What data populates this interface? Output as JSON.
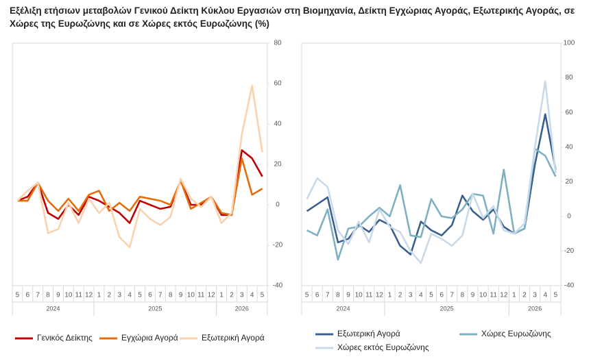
{
  "title": "Εξέλιξη ετήσιων μεταβολών Γενικού Δείκτη Κύκλου Εργασιών στη Βιομηχανία, Δείκτη Εγχώριας Αγοράς, Εξωτερικής Αγοράς,  σε Χώρες της Ευρωζώνης και σε Χώρες εκτός Ευρωζώνης (%)",
  "chart_data": [
    {
      "type": "line",
      "categories": [
        "5",
        "6",
        "7",
        "8",
        "9",
        "10",
        "11",
        "12",
        "1",
        "2",
        "3",
        "4",
        "5",
        "6",
        "7",
        "8",
        "9",
        "10",
        "11",
        "12",
        "1",
        "2",
        "3",
        "4",
        "5"
      ],
      "groups": [
        {
          "label": "2024",
          "count": 8
        },
        {
          "label": "2025",
          "count": 12
        },
        {
          "label": "2026",
          "count": 5
        }
      ],
      "ylim": [
        -40,
        80
      ],
      "yticks": [
        -40,
        -20,
        0,
        20,
        40,
        60,
        80
      ],
      "series": [
        {
          "name": "Γενικός Δείκτης",
          "color": "#c00000",
          "values": [
            2,
            4,
            11,
            -4,
            -7,
            0,
            -5,
            4,
            2,
            -1,
            -4,
            -9,
            2,
            0,
            -2,
            -1,
            12,
            0,
            0,
            4,
            -5,
            -5,
            27,
            23,
            14
          ]
        },
        {
          "name": "Εγχώρια Αγορά",
          "color": "#e46c0a",
          "values": [
            2,
            2,
            11,
            2,
            -3,
            3,
            -3,
            5,
            7,
            -3,
            1,
            -3,
            4,
            3,
            2,
            0,
            12,
            -2,
            1,
            4,
            -4,
            -5,
            23,
            5,
            8
          ]
        },
        {
          "name": "Εξωτερική Αγορά",
          "color": "#fad2b0",
          "values": [
            2,
            7,
            11,
            -14,
            -12,
            1,
            -9,
            3,
            -4,
            1,
            -16,
            -21,
            -2,
            -7,
            -10,
            -6,
            13,
            3,
            -1,
            4,
            -9,
            -4,
            35,
            59,
            26
          ]
        }
      ]
    },
    {
      "type": "line",
      "categories": [
        "5",
        "6",
        "7",
        "8",
        "9",
        "10",
        "11",
        "12",
        "1",
        "2",
        "3",
        "4",
        "5",
        "6",
        "7",
        "8",
        "9",
        "10",
        "11",
        "12",
        "1",
        "2",
        "3",
        "4",
        "5"
      ],
      "groups": [
        {
          "label": "2024",
          "count": 8
        },
        {
          "label": "2025",
          "count": 12
        },
        {
          "label": "2026",
          "count": 5
        }
      ],
      "ylim": [
        -40,
        100
      ],
      "yticks": [
        -40,
        -20,
        0,
        20,
        40,
        60,
        80,
        100
      ],
      "series": [
        {
          "name": "Εξωτερική Αγορά",
          "color": "#3b5f8c",
          "values": [
            3,
            7,
            11,
            -15,
            -13,
            -5,
            -9,
            -2,
            -5,
            -17,
            -22,
            -3,
            -8,
            -11,
            -5,
            12,
            3,
            -2,
            4,
            -6,
            -10,
            -7,
            30,
            59,
            27
          ]
        },
        {
          "name": "Χώρες Ευρωζώνης",
          "color": "#7fb0c2",
          "values": [
            -8,
            -11,
            4,
            -25,
            -7,
            -6,
            0,
            5,
            0,
            18,
            -11,
            -12,
            10,
            0,
            -1,
            4,
            13,
            12,
            -10,
            27,
            -10,
            -7,
            39,
            35,
            23
          ]
        },
        {
          "name": "Χώρες εκτός Ευρωζώνης",
          "color": "#c8daea",
          "values": [
            10,
            22,
            17,
            -8,
            -16,
            -3,
            -15,
            4,
            -6,
            -9,
            -20,
            -27,
            -10,
            -13,
            -17,
            -11,
            13,
            -1,
            6,
            -8,
            -10,
            -4,
            40,
            78,
            25
          ]
        }
      ]
    }
  ]
}
